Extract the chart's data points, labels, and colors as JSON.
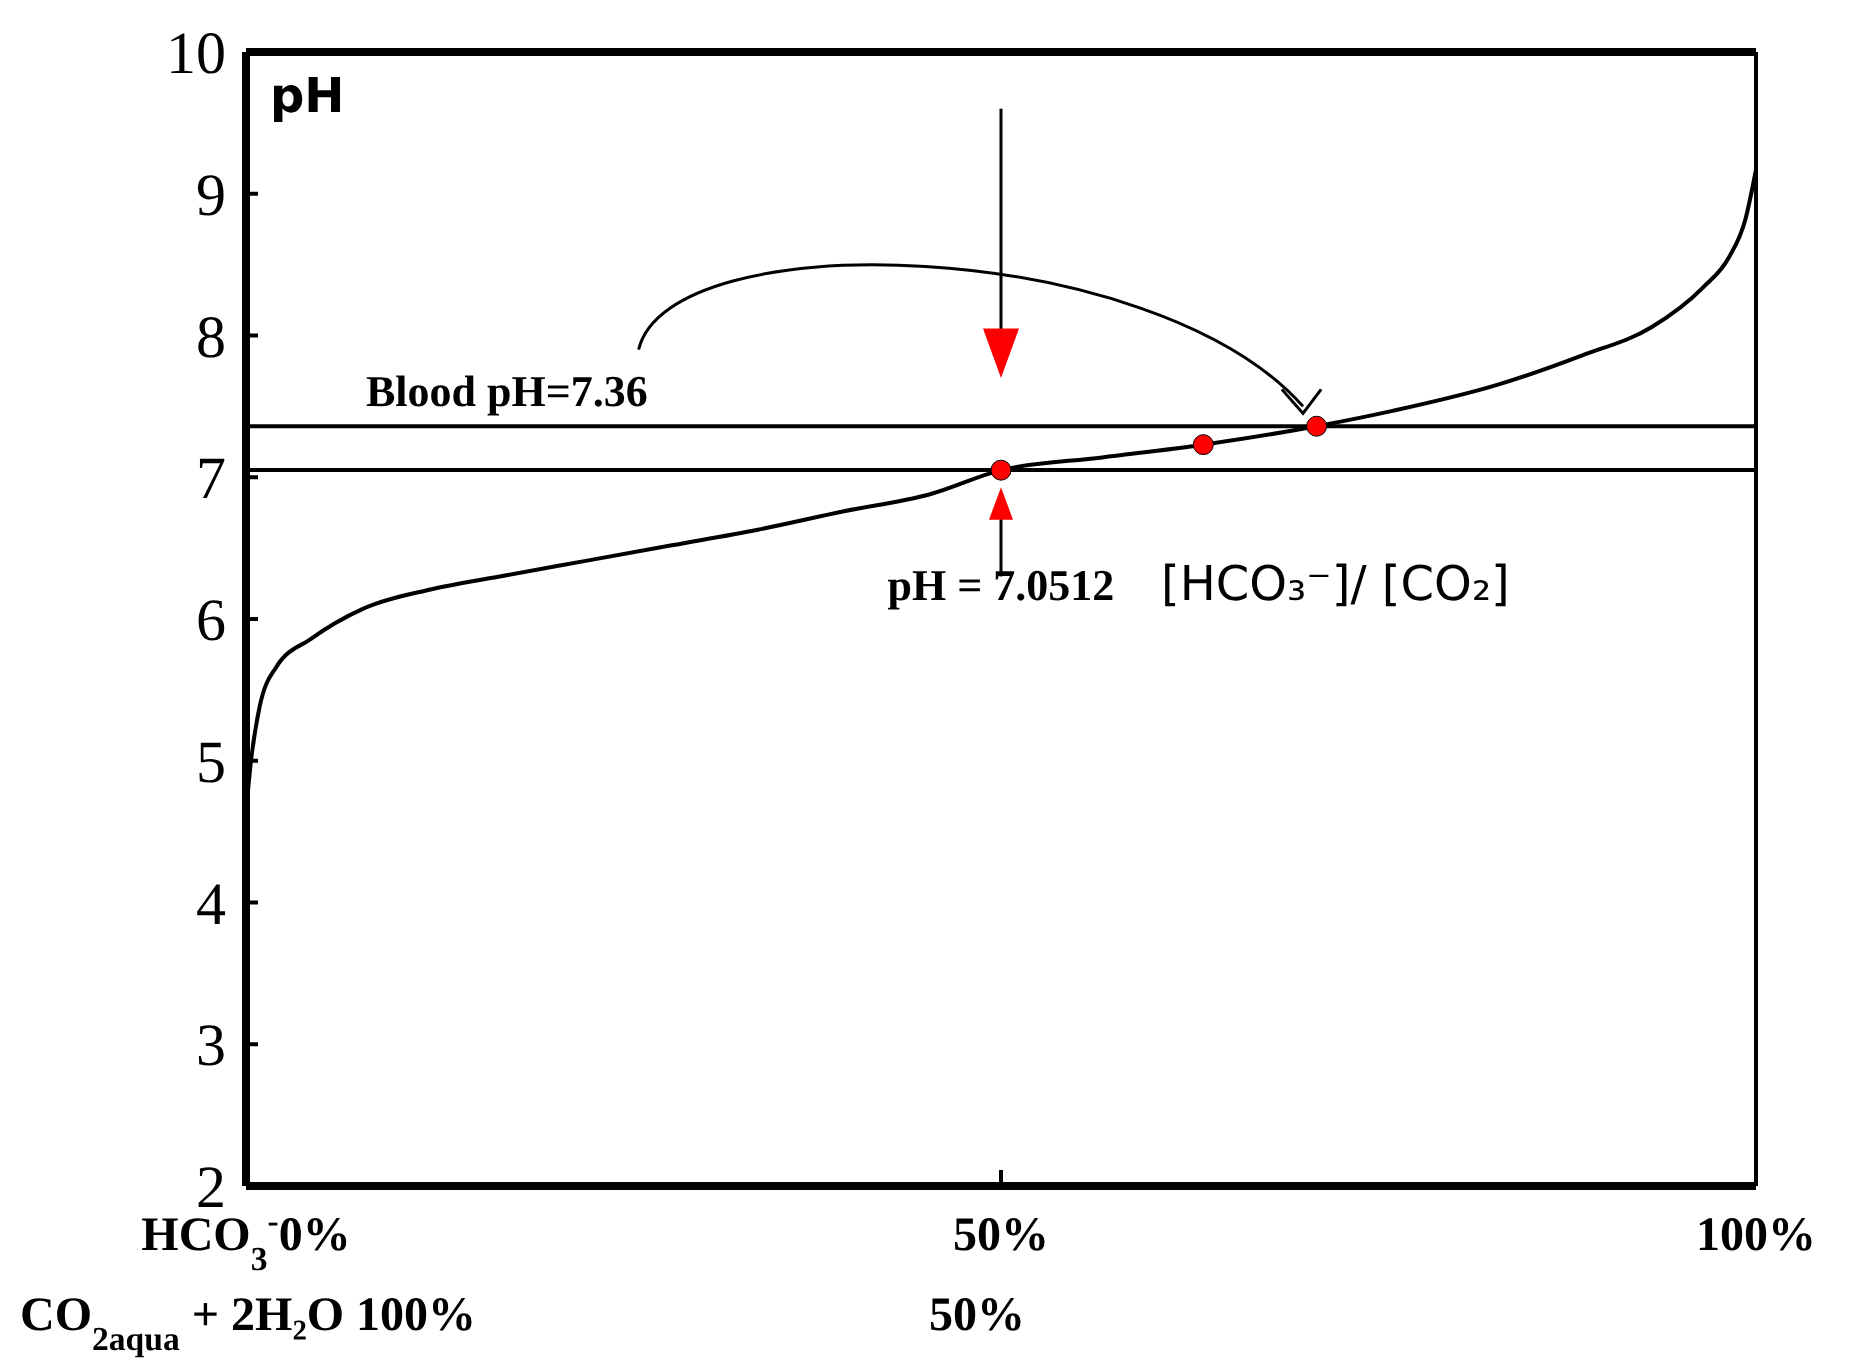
{
  "chart_data": {
    "type": "line",
    "ylabel": "pH",
    "xlim": [
      0,
      100
    ],
    "xticks": [
      {
        "value": 0,
        "label": "HCO$_{3}$$^{-}$0%"
      },
      {
        "value": 50,
        "label": "50%"
      },
      {
        "value": 100,
        "label": "100%"
      }
    ],
    "ylim": [
      2,
      10
    ],
    "yticks": [
      2,
      3,
      4,
      5,
      6,
      7,
      8,
      9,
      10
    ],
    "grid": false,
    "series": [
      {
        "color": "#000000",
        "x": [
          0,
          0.3,
          0.9,
          2,
          4.3,
          7.7,
          12.3,
          16.8,
          22.5,
          28.2,
          33.9,
          39.6,
          45.3,
          50,
          56.7,
          63.4,
          70.9,
          76,
          82.8,
          88.5,
          93.1,
          96.5,
          98.2,
          99.3,
          100
        ],
        "values": [
          4.63,
          4.97,
          5.38,
          5.66,
          5.86,
          6.07,
          6.21,
          6.3,
          6.41,
          6.52,
          6.63,
          6.76,
          6.88,
          7.05,
          7.14,
          7.23,
          7.36,
          7.47,
          7.65,
          7.86,
          8.06,
          8.34,
          8.55,
          8.82,
          9.17
        ]
      },
      {
        "type": "scatter",
        "color": "#ff0000",
        "x": [
          50,
          63.4,
          70.9
        ],
        "values": [
          7.05,
          7.23,
          7.36
        ]
      }
    ],
    "ref_lines": [
      {
        "axis": "y",
        "value": 7.36,
        "label": "Blood pH=7.36"
      },
      {
        "axis": "y",
        "value": 7.0512,
        "label": "pH = 7.0512"
      }
    ],
    "annotations": [
      "[HCO₃⁻]/ [CO₂]",
      "CO$_{2aqua}$ + 2H₂O 100%",
      "50%"
    ]
  }
}
